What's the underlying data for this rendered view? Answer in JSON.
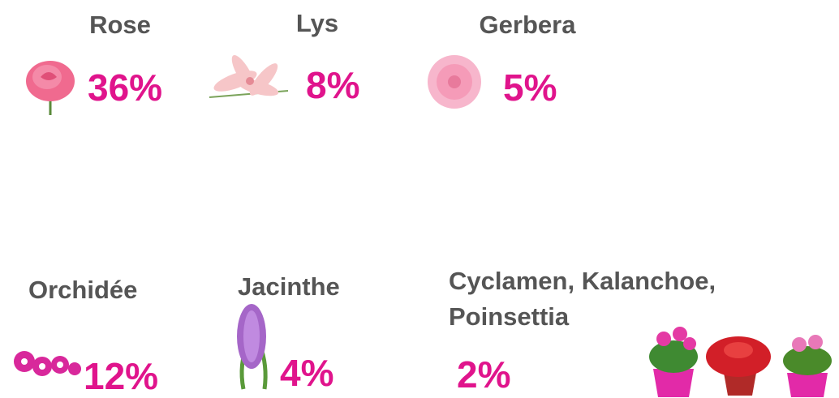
{
  "items": [
    {
      "label": "Rose",
      "value": "36%"
    },
    {
      "label": "Lys",
      "value": "8%"
    },
    {
      "label": "Gerbera",
      "value": "5%"
    },
    {
      "label": "Orchidée",
      "value": "12%"
    },
    {
      "label": "Jacinthe",
      "value": "4%"
    },
    {
      "label": [
        "Cyclamen, Kalanchoe,",
        "Poinsettia"
      ],
      "value": "2%"
    }
  ]
}
